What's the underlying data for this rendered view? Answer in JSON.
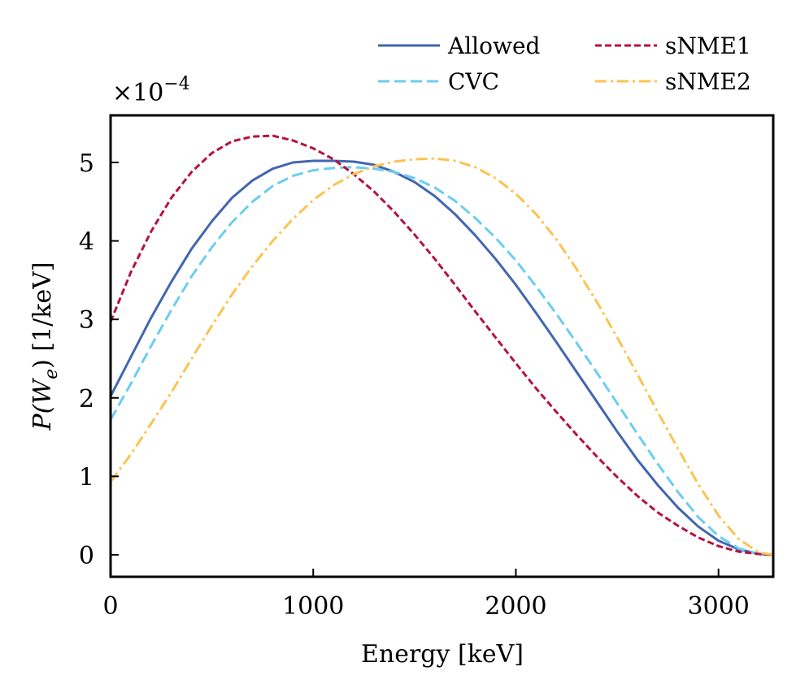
{
  "chart_data": {
    "type": "line",
    "title": "",
    "xlabel": "Energy [keV]",
    "ylabel": "P(W_e) [1/keV]",
    "ylabel_parts": {
      "prefix": "P(W",
      "subscript": "e",
      "suffix": ") [1/keV]"
    },
    "y_scale_label": {
      "base": "×10",
      "exponent": "−4"
    },
    "xlim": [
      0,
      3270
    ],
    "ylim": [
      -0.28,
      5.6
    ],
    "xticks": [
      0,
      1000,
      2000,
      3000
    ],
    "xtick_labels": [
      "0",
      "1000",
      "2000",
      "3000"
    ],
    "yticks": [
      0,
      1,
      2,
      3,
      4,
      5
    ],
    "ytick_labels": [
      "0",
      "1",
      "2",
      "3",
      "4",
      "5"
    ],
    "grid": false,
    "legend_position": "top-right, above plot",
    "x": [
      0,
      100,
      200,
      300,
      400,
      500,
      600,
      700,
      800,
      900,
      1000,
      1100,
      1200,
      1300,
      1400,
      1500,
      1600,
      1700,
      1800,
      1900,
      2000,
      2100,
      2200,
      2300,
      2400,
      2500,
      2600,
      2700,
      2800,
      2900,
      3000,
      3100,
      3200,
      3270
    ],
    "series": [
      {
        "name": "Allowed",
        "color": "#4266b0",
        "dash": "solid",
        "values": [
          2.02,
          2.52,
          3.02,
          3.48,
          3.9,
          4.25,
          4.55,
          4.77,
          4.92,
          5.0,
          5.02,
          5.02,
          5.01,
          4.97,
          4.88,
          4.75,
          4.57,
          4.34,
          4.07,
          3.77,
          3.44,
          3.08,
          2.71,
          2.33,
          1.95,
          1.57,
          1.21,
          0.89,
          0.6,
          0.36,
          0.18,
          0.07,
          0.01,
          0.0
        ]
      },
      {
        "name": "CVC",
        "color": "#6ccdf0",
        "dash": "dashed",
        "values": [
          1.72,
          2.18,
          2.66,
          3.12,
          3.55,
          3.92,
          4.24,
          4.5,
          4.7,
          4.83,
          4.9,
          4.93,
          4.94,
          4.92,
          4.88,
          4.8,
          4.68,
          4.51,
          4.29,
          4.04,
          3.75,
          3.42,
          3.07,
          2.7,
          2.32,
          1.93,
          1.54,
          1.16,
          0.8,
          0.48,
          0.24,
          0.08,
          0.01,
          0.0
        ]
      },
      {
        "name": "sNME1",
        "color": "#b5123e",
        "dash": "short-dashed",
        "values": [
          2.97,
          3.6,
          4.12,
          4.55,
          4.88,
          5.12,
          5.27,
          5.33,
          5.34,
          5.28,
          5.18,
          5.04,
          4.85,
          4.63,
          4.37,
          4.08,
          3.77,
          3.44,
          3.1,
          2.77,
          2.44,
          2.12,
          1.82,
          1.53,
          1.25,
          0.99,
          0.75,
          0.54,
          0.37,
          0.22,
          0.11,
          0.04,
          0.01,
          0.0
        ]
      },
      {
        "name": "sNME2",
        "color": "#fbc350",
        "dash": "dash-dot",
        "values": [
          0.93,
          1.28,
          1.67,
          2.07,
          2.5,
          2.92,
          3.32,
          3.68,
          4.0,
          4.28,
          4.52,
          4.71,
          4.85,
          4.95,
          5.01,
          5.04,
          5.05,
          5.02,
          4.94,
          4.8,
          4.6,
          4.34,
          4.02,
          3.64,
          3.22,
          2.77,
          2.3,
          1.82,
          1.35,
          0.9,
          0.5,
          0.2,
          0.03,
          0.0
        ]
      }
    ]
  }
}
